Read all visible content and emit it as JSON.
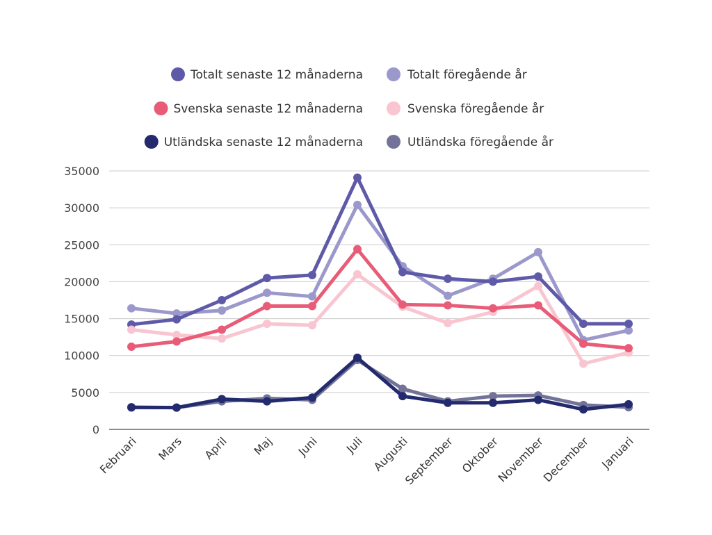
{
  "chart_data": {
    "type": "line",
    "title": "",
    "xlabel": "",
    "ylabel": "",
    "ylim": [
      0,
      35000
    ],
    "yticks": [
      "0",
      "5000",
      "10000",
      "15000",
      "20000",
      "25000",
      "30000",
      "35000"
    ],
    "ytick_values": [
      0,
      5000,
      10000,
      15000,
      20000,
      25000,
      30000,
      35000
    ],
    "grid": true,
    "legend_position": "top-center",
    "categories": [
      "Februari",
      "Mars",
      "April",
      "Maj",
      "Juni",
      "Juli",
      "Augusti",
      "September",
      "Oktober",
      "November",
      "December",
      "Januari"
    ],
    "series": [
      {
        "name": "Totalt senaste 12 månaderna",
        "color": "#5f5aa8",
        "values": [
          14200,
          14900,
          17500,
          20500,
          20900,
          34100,
          21300,
          20400,
          20000,
          20700,
          14300,
          14300
        ]
      },
      {
        "name": "Totalt föregående år",
        "color": "#9b98cc",
        "values": [
          16400,
          15700,
          16100,
          18500,
          18000,
          30400,
          22100,
          18100,
          20400,
          24000,
          12100,
          13400
        ]
      },
      {
        "name": "Svenska senaste 12 månaderna",
        "color": "#e85c78",
        "values": [
          11200,
          11900,
          13500,
          16700,
          16700,
          24400,
          16900,
          16800,
          16400,
          16800,
          11600,
          11000
        ]
      },
      {
        "name": "Svenska föregående år",
        "color": "#f9c5d0",
        "values": [
          13500,
          12800,
          12300,
          14300,
          14100,
          21000,
          16600,
          14400,
          15900,
          19400,
          8900,
          10400
        ]
      },
      {
        "name": "Utländska senaste 12 månaderna",
        "color": "#232a6e",
        "values": [
          3000,
          2950,
          4100,
          3800,
          4300,
          9700,
          4500,
          3600,
          3600,
          4000,
          2700,
          3400
        ]
      },
      {
        "name": "Utländska föregående år",
        "color": "#737399",
        "values": [
          2950,
          2950,
          3800,
          4200,
          4000,
          9400,
          5500,
          3800,
          4500,
          4600,
          3300,
          3000
        ]
      }
    ]
  },
  "legend": {
    "items": [
      {
        "label": "Totalt senaste 12 månaderna",
        "color": "#5f5aa8"
      },
      {
        "label": "Totalt föregående år",
        "color": "#9b98cc"
      },
      {
        "label": "Svenska senaste 12 månaderna",
        "color": "#e85c78"
      },
      {
        "label": "Svenska föregående år",
        "color": "#f9c5d0"
      },
      {
        "label": "Utländska senaste 12 månaderna",
        "color": "#232a6e"
      },
      {
        "label": "Utländska föregående år",
        "color": "#737399"
      }
    ]
  },
  "colors": {
    "gridline": "#cccccc",
    "axis": "#666666",
    "text": "#333333"
  }
}
